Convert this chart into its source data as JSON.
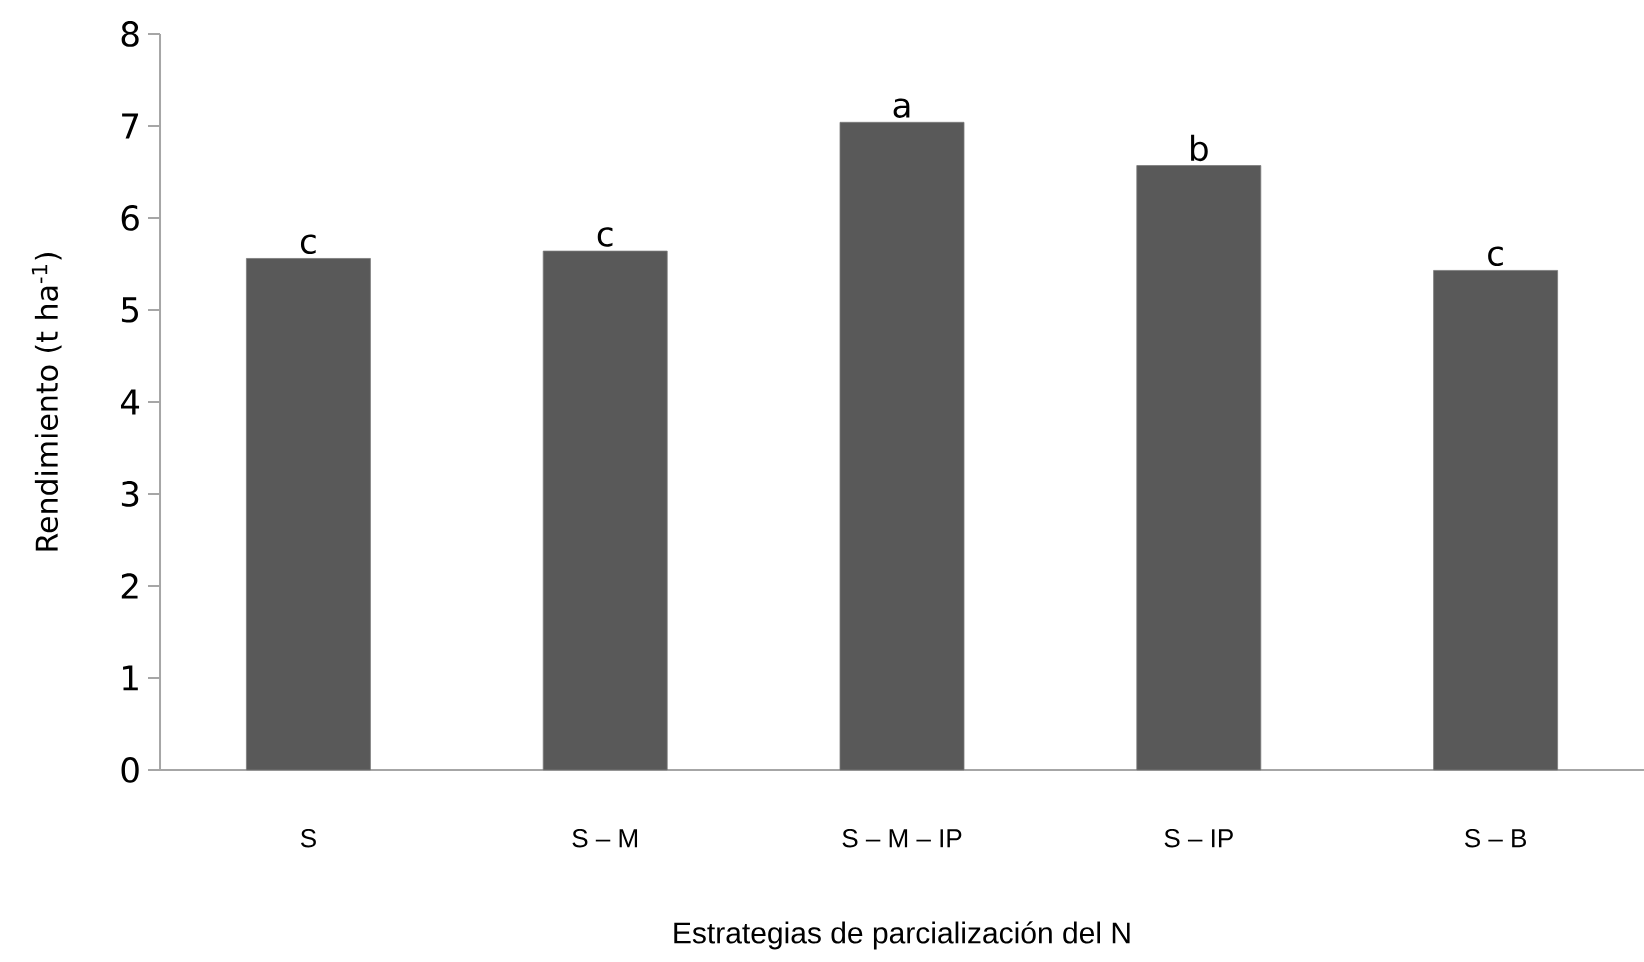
{
  "chart_data": {
    "type": "bar",
    "xlabel": "Estrategias de parcialización del N",
    "ylabel": "Rendimiento (t ha$^{-1}$)",
    "categories": [
      "S",
      "S – M",
      "S – M – IP",
      "S – IP",
      "S – B"
    ],
    "values": [
      5.56,
      5.64,
      7.04,
      6.57,
      5.43
    ],
    "color": "#595959",
    "ylim": [
      0,
      8
    ],
    "yticks": [
      0,
      1,
      2,
      3,
      4,
      5,
      6,
      7,
      8
    ],
    "grid": false,
    "annotations": [
      {
        "text": "c",
        "x": "S",
        "y": 5.56
      },
      {
        "text": "c",
        "x": "S – M",
        "y": 5.64
      },
      {
        "text": "a",
        "x": "S – M – IP",
        "y": 7.04
      },
      {
        "text": "b",
        "x": "S – IP",
        "y": 6.57
      },
      {
        "text": "c",
        "x": "S – B",
        "y": 5.43
      }
    ]
  }
}
